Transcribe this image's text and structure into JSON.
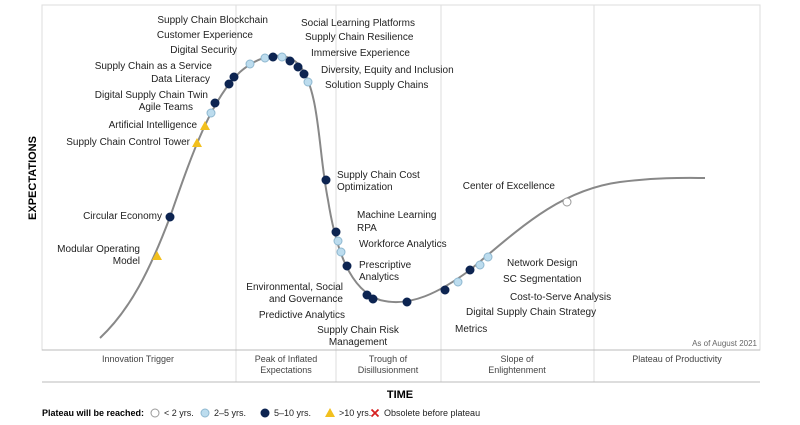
{
  "axes": {
    "y_label": "EXPECTATIONS",
    "x_label": "TIME"
  },
  "note": "As of August 2021",
  "phases": [
    "Innovation Trigger",
    "Peak of Inflated Expectations",
    "Trough of Disillusionment",
    "Slope of Enlightenment",
    "Plateau of Productivity"
  ],
  "technologies": [
    {
      "label": "Modular Operating Model",
      "plateau": ">10 yrs."
    },
    {
      "label": "Circular Economy",
      "plateau": "5–10 yrs."
    },
    {
      "label": "Supply Chain Control Tower",
      "plateau": ">10 yrs."
    },
    {
      "label": "Artificial Intelligence",
      "plateau": ">10 yrs."
    },
    {
      "label": "Agile Teams",
      "plateau": "2–5 yrs."
    },
    {
      "label": "Digital Supply Chain Twin",
      "plateau": "5–10 yrs."
    },
    {
      "label": "Data Literacy",
      "plateau": "5–10 yrs."
    },
    {
      "label": "Supply Chain as a Service",
      "plateau": "5–10 yrs."
    },
    {
      "label": "Digital Security",
      "plateau": "2–5 yrs."
    },
    {
      "label": "Customer Experience",
      "plateau": "2–5 yrs."
    },
    {
      "label": "Supply Chain Blockchain",
      "plateau": "5–10 yrs."
    },
    {
      "label": "Social Learning Platforms",
      "plateau": "2–5 yrs."
    },
    {
      "label": "Supply Chain Resilience",
      "plateau": "5–10 yrs."
    },
    {
      "label": "Immersive Experience",
      "plateau": "5–10 yrs."
    },
    {
      "label": "Diversity, Equity and Inclusion",
      "plateau": "5–10 yrs."
    },
    {
      "label": "Solution Supply Chains",
      "plateau": "2–5 yrs."
    },
    {
      "label": "Supply Chain Cost Optimization",
      "plateau": "5–10 yrs."
    },
    {
      "label": "Machine Learning",
      "plateau": "5–10 yrs."
    },
    {
      "label": "RPA",
      "plateau": "2–5 yrs."
    },
    {
      "label": "Workforce Analytics",
      "plateau": "2–5 yrs."
    },
    {
      "label": "Prescriptive Analytics",
      "plateau": "5–10 yrs."
    },
    {
      "label": "Environmental, Social and Governance",
      "plateau": "5–10 yrs."
    },
    {
      "label": "Predictive Analytics",
      "plateau": "5–10 yrs."
    },
    {
      "label": "Supply Chain Risk Management",
      "plateau": "5–10 yrs."
    },
    {
      "label": "Metrics",
      "plateau": "5–10 yrs."
    },
    {
      "label": "Digital Supply Chain Strategy",
      "plateau": "2–5 yrs."
    },
    {
      "label": "Cost-to-Serve Analysis",
      "plateau": "5–10 yrs."
    },
    {
      "label": "SC Segmentation",
      "plateau": "2–5 yrs."
    },
    {
      "label": "Network Design",
      "plateau": "2–5 yrs."
    },
    {
      "label": "Center of Excellence",
      "plateau": "< 2 yrs."
    }
  ],
  "legend": {
    "title": "Plateau will be reached:",
    "items": [
      "< 2 yrs.",
      "2–5 yrs.",
      "5–10 yrs.",
      ">10 yrs.",
      "Obsolete before plateau"
    ]
  }
}
